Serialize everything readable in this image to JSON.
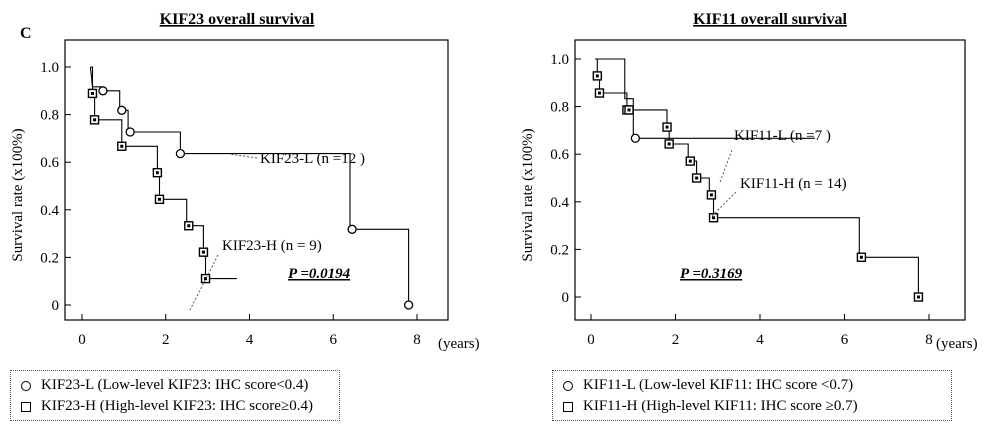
{
  "panel_label": "C",
  "chart_data": [
    {
      "type": "line",
      "title": "KIF23 overall survival",
      "xlabel": "(years)",
      "ylabel": "Survival rate (x100%)",
      "xlim": [
        0,
        8
      ],
      "ylim": [
        0,
        1.0
      ],
      "x_ticks": [
        "0",
        "2",
        "4",
        "6",
        "8"
      ],
      "y_ticks": [
        "0",
        "0.2",
        "0.4",
        "0.6",
        "0.8",
        "1.0"
      ],
      "p_value": "P =0.0194",
      "series": [
        {
          "name": "KIF23-L (n =12 )",
          "marker": "circle",
          "steps": [
            [
              0.2,
              1.0
            ],
            [
              0.25,
              0.917
            ],
            [
              0.45,
              0.917
            ],
            [
              0.45,
              0.9
            ],
            [
              0.9,
              0.9
            ],
            [
              0.9,
              0.818
            ],
            [
              1.1,
              0.818
            ],
            [
              1.1,
              0.727
            ],
            [
              2.35,
              0.727
            ],
            [
              2.35,
              0.636
            ],
            [
              6.4,
              0.636
            ],
            [
              6.4,
              0.318
            ],
            [
              7.8,
              0.318
            ],
            [
              7.8,
              0.0
            ]
          ],
          "censored": [
            [
              0.5,
              0.9
            ],
            [
              0.95,
              0.818
            ],
            [
              1.15,
              0.727
            ],
            [
              2.35,
              0.636
            ],
            [
              6.45,
              0.318
            ],
            [
              7.8,
              0.0
            ]
          ]
        },
        {
          "name": "KIF23-H (n = 9)",
          "marker": "square",
          "steps": [
            [
              0.2,
              1.0
            ],
            [
              0.25,
              1.0
            ],
            [
              0.25,
              0.889
            ],
            [
              0.3,
              0.889
            ],
            [
              0.3,
              0.778
            ],
            [
              0.95,
              0.778
            ],
            [
              0.95,
              0.667
            ],
            [
              1.8,
              0.667
            ],
            [
              1.8,
              0.556
            ],
            [
              1.85,
              0.556
            ],
            [
              1.85,
              0.444
            ],
            [
              2.5,
              0.444
            ],
            [
              2.5,
              0.333
            ],
            [
              2.9,
              0.333
            ],
            [
              2.9,
              0.222
            ],
            [
              2.95,
              0.222
            ],
            [
              2.95,
              0.111
            ],
            [
              3.7,
              0.111
            ]
          ],
          "censored": [
            [
              0.25,
              0.889
            ],
            [
              0.3,
              0.778
            ],
            [
              0.95,
              0.667
            ],
            [
              1.8,
              0.556
            ],
            [
              1.85,
              0.444
            ],
            [
              2.55,
              0.333
            ],
            [
              2.9,
              0.222
            ],
            [
              2.95,
              0.111
            ]
          ]
        }
      ],
      "legend": [
        {
          "marker": "circle",
          "text": "KIF23-L (Low-level KIF23: IHC score<0.4)"
        },
        {
          "marker": "square",
          "text": "KIF23-H (High-level KIF23: IHC score≥0.4)"
        }
      ]
    },
    {
      "type": "line",
      "title": "KIF11 overall survival",
      "xlabel": "(years)",
      "ylabel": "Survival rate (x100%)",
      "xlim": [
        0,
        8
      ],
      "ylim": [
        0,
        1.0
      ],
      "x_ticks": [
        "0",
        "2",
        "4",
        "6",
        "8"
      ],
      "y_ticks": [
        "0",
        "0.2",
        "0.4",
        "0.6",
        "0.8",
        "1.0"
      ],
      "p_value": "P =0.3169",
      "series": [
        {
          "name": "KIF11-L (n =7 )",
          "marker": "circle",
          "steps": [
            [
              0.1,
              1.0
            ],
            [
              0.8,
              1.0
            ],
            [
              0.8,
              0.833
            ],
            [
              1.0,
              0.833
            ],
            [
              1.0,
              0.667
            ],
            [
              5.3,
              0.667
            ]
          ],
          "censored": [
            [
              1.05,
              0.667
            ]
          ]
        },
        {
          "name": "KIF11-H (n = 14)",
          "marker": "square",
          "steps": [
            [
              0.1,
              1.0
            ],
            [
              0.15,
              1.0
            ],
            [
              0.15,
              0.929
            ],
            [
              0.2,
              0.929
            ],
            [
              0.2,
              0.857
            ],
            [
              0.85,
              0.857
            ],
            [
              0.85,
              0.786
            ],
            [
              1.8,
              0.786
            ],
            [
              1.8,
              0.714
            ],
            [
              1.85,
              0.714
            ],
            [
              1.85,
              0.643
            ],
            [
              2.3,
              0.643
            ],
            [
              2.3,
              0.571
            ],
            [
              2.5,
              0.571
            ],
            [
              2.5,
              0.5
            ],
            [
              2.8,
              0.5
            ],
            [
              2.8,
              0.429
            ],
            [
              2.9,
              0.429
            ],
            [
              2.9,
              0.333
            ],
            [
              6.35,
              0.333
            ],
            [
              6.35,
              0.167
            ],
            [
              7.75,
              0.167
            ],
            [
              7.75,
              0.0
            ]
          ],
          "censored": [
            [
              0.15,
              0.929
            ],
            [
              0.2,
              0.857
            ],
            [
              0.85,
              0.786
            ],
            [
              0.9,
              0.786
            ],
            [
              1.8,
              0.714
            ],
            [
              1.85,
              0.643
            ],
            [
              2.35,
              0.571
            ],
            [
              2.5,
              0.5
            ],
            [
              2.85,
              0.429
            ],
            [
              2.9,
              0.333
            ],
            [
              6.4,
              0.167
            ],
            [
              7.75,
              0.0
            ]
          ]
        }
      ],
      "legend": [
        {
          "marker": "circle",
          "text": "KIF11-L (Low-level KIF11: IHC score <0.7)"
        },
        {
          "marker": "square",
          "text": "KIF11-H (High-level KIF11: IHC score ≥0.7)"
        }
      ]
    }
  ]
}
